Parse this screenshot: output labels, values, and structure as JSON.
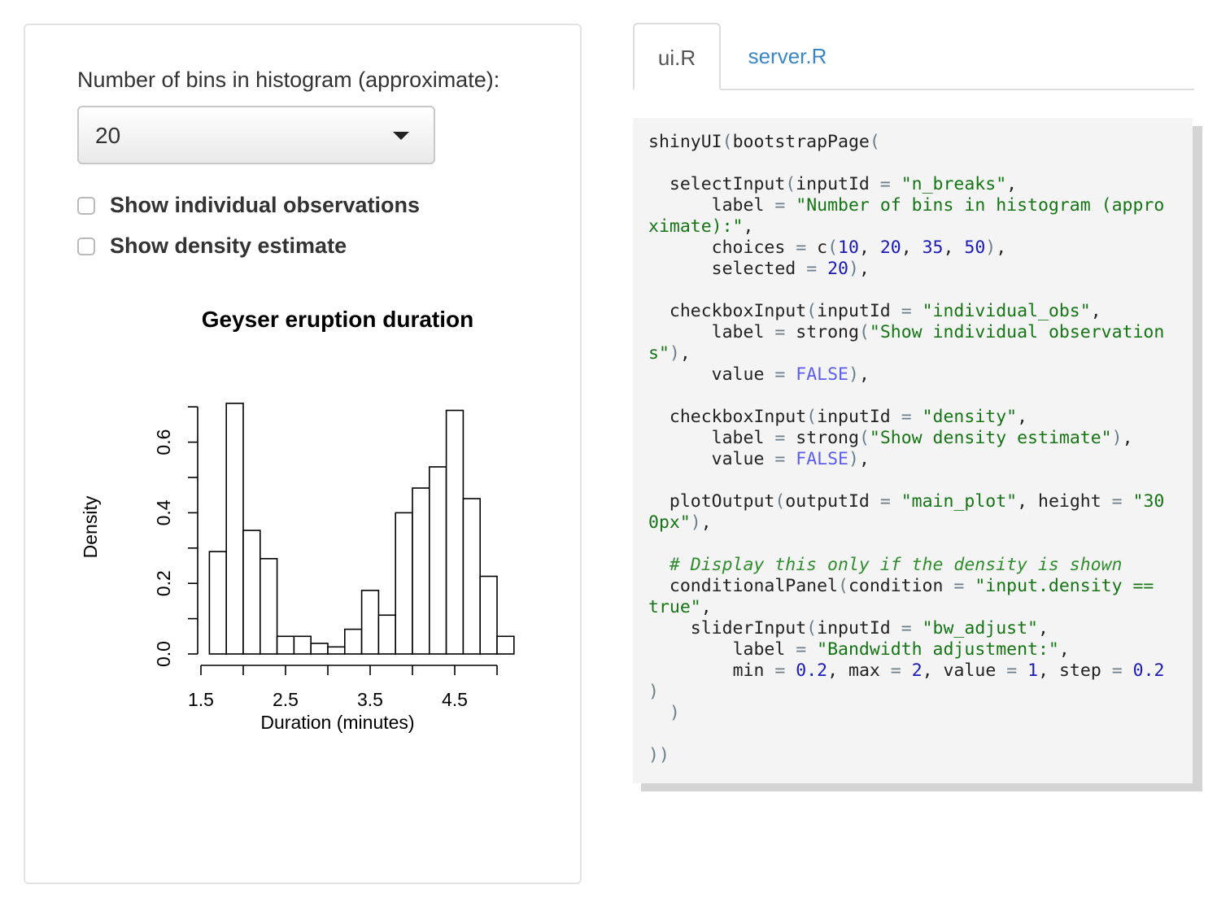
{
  "sidebar": {
    "select_label": "Number of bins in histogram (approximate):",
    "select_value": "20",
    "checkbox_obs_label": "Show individual observations",
    "checkbox_density_label": "Show density estimate"
  },
  "tabs": [
    {
      "label": "ui.R",
      "active": true
    },
    {
      "label": "server.R",
      "active": false
    }
  ],
  "chart_data": {
    "type": "bar",
    "title": "Geyser eruption duration",
    "xlabel": "Duration (minutes)",
    "ylabel": "Density",
    "bin_start": 1.6,
    "bin_width": 0.2,
    "values": [
      0.29,
      0.71,
      0.35,
      0.27,
      0.05,
      0.05,
      0.03,
      0.02,
      0.07,
      0.18,
      0.11,
      0.4,
      0.47,
      0.53,
      0.69,
      0.44,
      0.22,
      0.05
    ],
    "x_ticks": [
      1.5,
      2.5,
      3.5,
      4.5
    ],
    "x_tick_labels": [
      "1.5",
      "2.5",
      "3.5",
      "4.5"
    ],
    "y_ticks": [
      0.0,
      0.2,
      0.4,
      0.6
    ],
    "y_tick_labels": [
      "0.0",
      "0.2",
      "0.4",
      "0.6"
    ],
    "xlim": [
      1.5,
      5.1
    ],
    "ylim": [
      0,
      0.7
    ]
  },
  "colors": {
    "tab_link": "#3a87c4",
    "code_string": "#157515",
    "code_number": "#1a1ab8",
    "code_boolean": "#5d5df0",
    "code_background": "#f4f4f4"
  },
  "code": {
    "l1a": "shinyUI",
    "l1b": "(",
    "l1c": "bootstrapPage",
    "l1d": "(",
    "l3a": "selectInput",
    "l3b": "inputId",
    "l3c": "\"n_breaks\"",
    "l4a": "label",
    "l4b": "\"Number of bins in histogram (appro",
    "l5a": "ximate):\"",
    "l6a": "choices",
    "l6b": "c",
    "l6n1": "10",
    "l6n2": "20",
    "l6n3": "35",
    "l6n4": "50",
    "l7a": "selected",
    "l7n": "20",
    "l9a": "checkboxInput",
    "l9b": "inputId",
    "l9c": "\"individual_obs\"",
    "l10a": "label",
    "l10b": "strong",
    "l10c": "\"Show individual observation",
    "l11a": "s\"",
    "l12a": "value",
    "l12b": "FALSE",
    "l14a": "checkboxInput",
    "l14b": "inputId",
    "l14c": "\"density\"",
    "l15a": "label",
    "l15b": "strong",
    "l15c": "\"Show density estimate\"",
    "l16a": "value",
    "l16b": "FALSE",
    "l18a": "plotOutput",
    "l18b": "outputId",
    "l18c": "\"main_plot\"",
    "l18d": "height",
    "l18e": "\"30",
    "l19a": "0px\"",
    "l21a": "# Display this only if the density is shown",
    "l22a": "conditionalPanel",
    "l22b": "condition",
    "l22c": "\"input.density ==",
    "l23a": "true\"",
    "l24a": "sliderInput",
    "l24b": "inputId",
    "l24c": "\"bw_adjust\"",
    "l25a": "label",
    "l25b": "\"Bandwidth adjustment:\"",
    "l26a": "min",
    "l26b": "0.2",
    "l26c": "max",
    "l26d": "2",
    "l26e": "value",
    "l26f": "1",
    "l26g": "step",
    "l26h": "0.2"
  }
}
